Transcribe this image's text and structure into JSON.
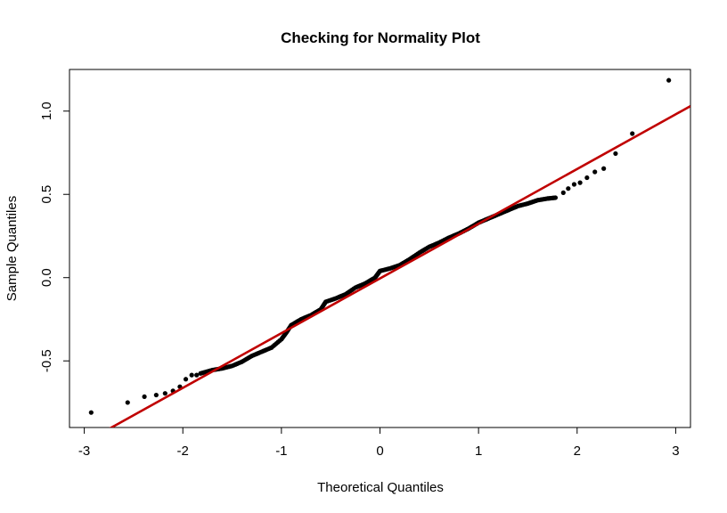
{
  "chart_data": {
    "type": "scatter",
    "title": "Checking for Normality Plot",
    "xlabel": "Theoretical Quantiles",
    "ylabel": "Sample Quantiles",
    "xlim": [
      -3.15,
      3.15
    ],
    "ylim": [
      -0.9,
      1.25
    ],
    "x_ticks": [
      -3,
      -2,
      -1,
      0,
      1,
      2,
      3
    ],
    "x_tick_labels": [
      "-3",
      "-2",
      "-1",
      "0",
      "1",
      "2",
      "3"
    ],
    "y_ticks": [
      -0.5,
      0.0,
      0.5,
      1.0
    ],
    "y_tick_labels": [
      "-0.5",
      "0.0",
      "0.5",
      "1.0"
    ],
    "grid": false,
    "point_color": "#000000",
    "reference_line": {
      "color": "#c00000",
      "points": [
        [
          -3.15,
          -1.04
        ],
        [
          3.15,
          1.03
        ]
      ]
    },
    "tail_points": [
      [
        -2.93,
        -0.81
      ],
      [
        -2.56,
        -0.75
      ],
      [
        -2.39,
        -0.715
      ],
      [
        -2.27,
        -0.705
      ],
      [
        -2.18,
        -0.695
      ],
      [
        -2.1,
        -0.68
      ],
      [
        -2.03,
        -0.655
      ],
      [
        -1.97,
        -0.61
      ],
      [
        -1.91,
        -0.585
      ],
      [
        -1.86,
        -0.585
      ],
      [
        1.86,
        0.51
      ],
      [
        1.91,
        0.535
      ],
      [
        1.97,
        0.56
      ],
      [
        2.03,
        0.57
      ],
      [
        2.1,
        0.6
      ],
      [
        2.18,
        0.635
      ],
      [
        2.27,
        0.655
      ],
      [
        2.39,
        0.745
      ],
      [
        2.56,
        0.865
      ],
      [
        2.93,
        1.185
      ]
    ],
    "body_points": [
      [
        -1.82,
        -0.575
      ],
      [
        -1.7,
        -0.555
      ],
      [
        -1.6,
        -0.545
      ],
      [
        -1.5,
        -0.53
      ],
      [
        -1.4,
        -0.505
      ],
      [
        -1.3,
        -0.47
      ],
      [
        -1.2,
        -0.445
      ],
      [
        -1.1,
        -0.42
      ],
      [
        -1.0,
        -0.37
      ],
      [
        -0.95,
        -0.33
      ],
      [
        -0.9,
        -0.285
      ],
      [
        -0.8,
        -0.25
      ],
      [
        -0.7,
        -0.225
      ],
      [
        -0.6,
        -0.19
      ],
      [
        -0.55,
        -0.145
      ],
      [
        -0.45,
        -0.125
      ],
      [
        -0.35,
        -0.1
      ],
      [
        -0.25,
        -0.06
      ],
      [
        -0.15,
        -0.035
      ],
      [
        -0.05,
        0.0
      ],
      [
        0.0,
        0.04
      ],
      [
        0.1,
        0.055
      ],
      [
        0.2,
        0.075
      ],
      [
        0.3,
        0.11
      ],
      [
        0.4,
        0.15
      ],
      [
        0.5,
        0.185
      ],
      [
        0.6,
        0.21
      ],
      [
        0.7,
        0.24
      ],
      [
        0.8,
        0.265
      ],
      [
        0.9,
        0.295
      ],
      [
        1.0,
        0.33
      ],
      [
        1.1,
        0.355
      ],
      [
        1.2,
        0.38
      ],
      [
        1.3,
        0.405
      ],
      [
        1.4,
        0.43
      ],
      [
        1.5,
        0.445
      ],
      [
        1.6,
        0.465
      ],
      [
        1.7,
        0.475
      ],
      [
        1.78,
        0.48
      ]
    ]
  }
}
